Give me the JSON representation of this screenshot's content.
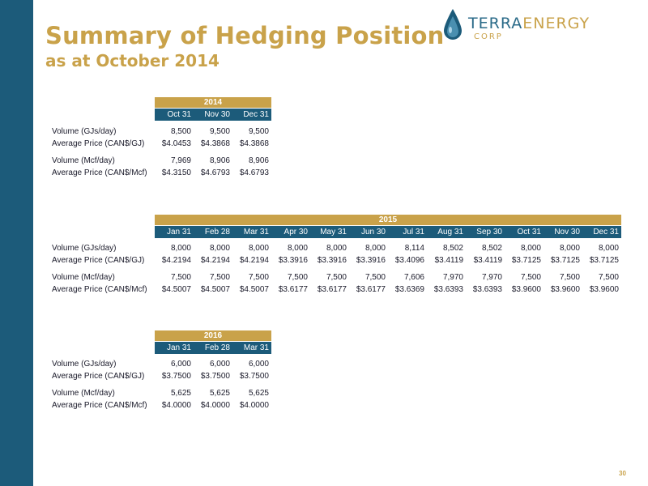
{
  "title": {
    "line1": "Summary of Hedging Position",
    "line2": "as at October 2014"
  },
  "logo": {
    "word_terra": "TERRA",
    "word_energy": "ENERGY",
    "corp": "CORP"
  },
  "tables": [
    {
      "year": "2014",
      "columns": [
        "Oct 31",
        "Nov 30",
        "Dec 31"
      ],
      "rows": [
        {
          "label": "Volume (GJs/day)",
          "values": [
            "8,500",
            "9,500",
            "9,500"
          ]
        },
        {
          "label": "Average Price (CAN$/GJ)",
          "values": [
            "$4.0453",
            "$4.3868",
            "$4.3868"
          ]
        },
        {
          "label": "Volume (Mcf/day)",
          "values": [
            "7,969",
            "8,906",
            "8,906"
          ]
        },
        {
          "label": "Average Price (CAN$/Mcf)",
          "values": [
            "$4.3150",
            "$4.6793",
            "$4.6793"
          ]
        }
      ]
    },
    {
      "year": "2015",
      "columns": [
        "Jan 31",
        "Feb 28",
        "Mar 31",
        "Apr 30",
        "May 31",
        "Jun 30",
        "Jul 31",
        "Aug 31",
        "Sep 30",
        "Oct 31",
        "Nov 30",
        "Dec 31"
      ],
      "rows": [
        {
          "label": "Volume (GJs/day)",
          "values": [
            "8,000",
            "8,000",
            "8,000",
            "8,000",
            "8,000",
            "8,000",
            "8,114",
            "8,502",
            "8,502",
            "8,000",
            "8,000",
            "8,000"
          ]
        },
        {
          "label": "Average Price (CAN$/GJ)",
          "values": [
            "$4.2194",
            "$4.2194",
            "$4.2194",
            "$3.3916",
            "$3.3916",
            "$3.3916",
            "$3.4096",
            "$3.4119",
            "$3.4119",
            "$3.7125",
            "$3.7125",
            "$3.7125"
          ]
        },
        {
          "label": "Volume (Mcf/day)",
          "values": [
            "7,500",
            "7,500",
            "7,500",
            "7,500",
            "7,500",
            "7,500",
            "7,606",
            "7,970",
            "7,970",
            "7,500",
            "7,500",
            "7,500"
          ]
        },
        {
          "label": "Average Price (CAN$/Mcf)",
          "values": [
            "$4.5007",
            "$4.5007",
            "$4.5007",
            "$3.6177",
            "$3.6177",
            "$3.6177",
            "$3.6369",
            "$3.6393",
            "$3.6393",
            "$3.9600",
            "$3.9600",
            "$3.9600"
          ]
        }
      ]
    },
    {
      "year": "2016",
      "columns": [
        "Jan 31",
        "Feb 28",
        "Mar 31"
      ],
      "rows": [
        {
          "label": "Volume (GJs/day)",
          "values": [
            "6,000",
            "6,000",
            "6,000"
          ]
        },
        {
          "label": "Average Price (CAN$/GJ)",
          "values": [
            "$3.7500",
            "$3.7500",
            "$3.7500"
          ]
        },
        {
          "label": "Volume (Mcf/day)",
          "values": [
            "5,625",
            "5,625",
            "5,625"
          ]
        },
        {
          "label": "Average Price (CAN$/Mcf)",
          "values": [
            "$4.0000",
            "$4.0000",
            "$4.0000"
          ]
        }
      ]
    }
  ],
  "page_number": "30",
  "colors": {
    "sidebar": "#1c5b7a",
    "title_gold": "#c9a24a",
    "header_blue": "#1c5b7a",
    "year_gold": "#c9a24a"
  }
}
